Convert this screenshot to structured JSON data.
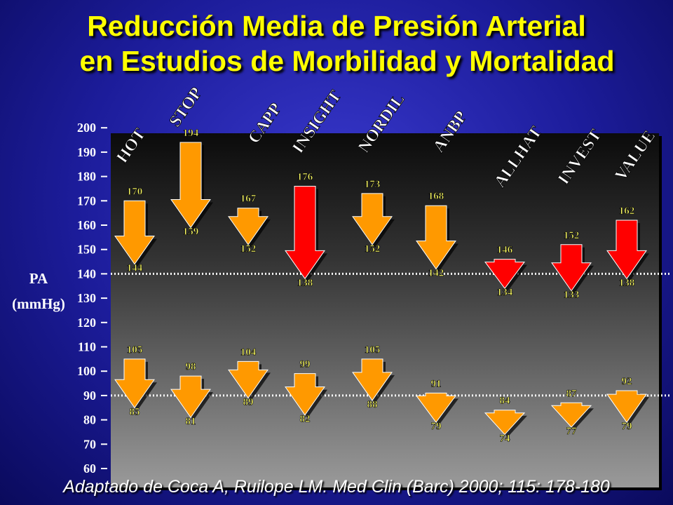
{
  "title": {
    "line1": "Reducción Media de Presión Arterial",
    "line2": "en Estudios de Morbilidad y Mortalidad"
  },
  "footer": "Adaptado de Coca A, Ruilope LM. Med Clin (Barc) 2000; 115: 178-180",
  "colors": {
    "arrow_orange": "#ff9900",
    "arrow_red": "#ff0000",
    "label_yellow": "#ffff66",
    "reference_line": "#ffffff"
  },
  "chart_data": {
    "type": "arrow-bar",
    "ylabel": "PA\n(mmHg)",
    "ylim": [
      60,
      200
    ],
    "yticks": [
      60,
      70,
      80,
      90,
      100,
      110,
      120,
      130,
      140,
      150,
      160,
      170,
      180,
      190,
      200
    ],
    "reference_lines": [
      140,
      90
    ],
    "studies": [
      {
        "name": "HOT",
        "systolic": [
          170,
          144
        ],
        "diastolic": [
          105,
          85
        ],
        "systolic_color": "orange"
      },
      {
        "name": "STOP",
        "systolic": [
          194,
          159
        ],
        "diastolic": [
          98,
          81
        ],
        "systolic_color": "orange"
      },
      {
        "name": "CAPP",
        "systolic": [
          167,
          152
        ],
        "diastolic": [
          104,
          89
        ],
        "systolic_color": "orange"
      },
      {
        "name": "INSIGHT",
        "systolic": [
          176,
          138
        ],
        "diastolic": [
          99,
          82
        ],
        "systolic_color": "red"
      },
      {
        "name": "NORDIL",
        "systolic": [
          173,
          152
        ],
        "diastolic": [
          105,
          88
        ],
        "systolic_color": "orange"
      },
      {
        "name": "ANBP",
        "systolic": [
          168,
          142
        ],
        "diastolic": [
          91,
          79
        ],
        "systolic_color": "orange"
      },
      {
        "name": "ALLHAT",
        "systolic": [
          146,
          134
        ],
        "diastolic": [
          84,
          74
        ],
        "systolic_color": "red"
      },
      {
        "name": "INVEST",
        "systolic": [
          152,
          133
        ],
        "diastolic": [
          87,
          77
        ],
        "systolic_color": "red"
      },
      {
        "name": "VALUE",
        "systolic": [
          162,
          138
        ],
        "diastolic": [
          92,
          79
        ],
        "systolic_color": "red"
      }
    ]
  }
}
